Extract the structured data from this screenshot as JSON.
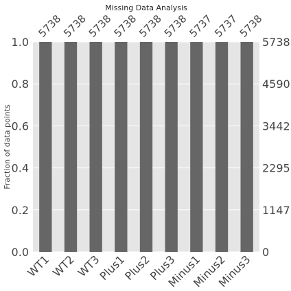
{
  "chart_data": {
    "type": "bar",
    "title": "Missing Data Analysis",
    "ylabel": "Fraction of data points",
    "xlabel": "",
    "categories": [
      "WT1",
      "WT2",
      "WT3",
      "Plus1",
      "Plus2",
      "Plus3",
      "Minus1",
      "Minus2",
      "Minus3"
    ],
    "values": [
      1.0,
      1.0,
      1.0,
      1.0,
      1.0,
      1.0,
      0.99983,
      0.99983,
      1.0
    ],
    "counts": [
      "5738",
      "5738",
      "5738",
      "5738",
      "5738",
      "5738",
      "5737",
      "5737",
      "5738"
    ],
    "ylim": [
      0,
      1
    ],
    "yticks_left": [
      "0.0",
      "0.2",
      "0.4",
      "0.6",
      "0.8",
      "1.0"
    ],
    "yticks_right": [
      "0",
      "1147",
      "2295",
      "3442",
      "4590",
      "5738"
    ],
    "grid": true,
    "colors": {
      "bar": "#666666",
      "background": "#e5e5e5",
      "grid": "#ffffff"
    }
  }
}
